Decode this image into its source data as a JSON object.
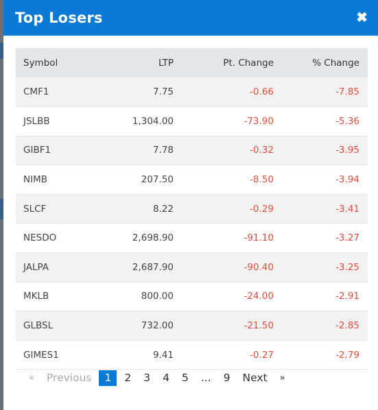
{
  "modal": {
    "title": "Top Losers",
    "close_icon": "close-icon"
  },
  "table": {
    "headers": [
      "Symbol",
      "LTP",
      "Pt. Change",
      "% Change"
    ],
    "rows": [
      {
        "symbol": "CMF1",
        "ltp": "7.75",
        "pt": "-0.66",
        "pct": "-7.85"
      },
      {
        "symbol": "JSLBB",
        "ltp": "1,304.00",
        "pt": "-73.90",
        "pct": "-5.36"
      },
      {
        "symbol": "GIBF1",
        "ltp": "7.78",
        "pt": "-0.32",
        "pct": "-3.95"
      },
      {
        "symbol": "NIMB",
        "ltp": "207.50",
        "pt": "-8.50",
        "pct": "-3.94"
      },
      {
        "symbol": "SLCF",
        "ltp": "8.22",
        "pt": "-0.29",
        "pct": "-3.41"
      },
      {
        "symbol": "NESDO",
        "ltp": "2,698.90",
        "pt": "-91.10",
        "pct": "-3.27"
      },
      {
        "symbol": "JALPA",
        "ltp": "2,687.90",
        "pt": "-90.40",
        "pct": "-3.25"
      },
      {
        "symbol": "MKLB",
        "ltp": "800.00",
        "pt": "-24.00",
        "pct": "-2.91"
      },
      {
        "symbol": "GLBSL",
        "ltp": "732.00",
        "pt": "-21.50",
        "pct": "-2.85"
      },
      {
        "symbol": "GIMES1",
        "ltp": "9.41",
        "pt": "-0.27",
        "pct": "-2.79"
      }
    ]
  },
  "pagination": {
    "prev_arrow": "«",
    "prev_label": "Previous",
    "pages": [
      "1",
      "2",
      "3",
      "4",
      "5",
      "...",
      "9"
    ],
    "current": "1",
    "next_label": "Next",
    "next_arrow": "»"
  },
  "colors": {
    "header_bg": "#0a7ad6",
    "negative": "#e74c3c"
  }
}
